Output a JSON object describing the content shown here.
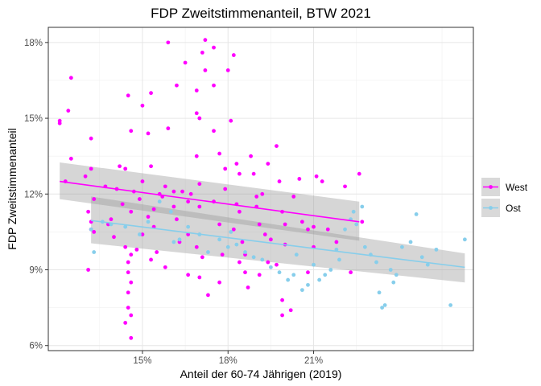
{
  "chart_data": {
    "type": "scatter",
    "title": "FDP Zweitstimmenanteil, BTW 2021",
    "xlabel": "Anteil der 60-74 Jährigen (2019)",
    "ylabel": "FDP Zweitstimmenanteil",
    "xlim": [
      11.7,
      26.6
    ],
    "ylim": [
      5.8,
      18.6
    ],
    "x_ticks": [
      15,
      18,
      21
    ],
    "x_tick_labels": [
      "15%",
      "18%",
      "21%"
    ],
    "y_ticks": [
      6,
      9,
      12,
      15,
      18
    ],
    "y_tick_labels": [
      "6%",
      "9%",
      "12%",
      "15%",
      "18%"
    ],
    "grid": true,
    "legend_position": "right",
    "series": [
      {
        "name": "West",
        "color": "#ff00ff",
        "trend": {
          "x": [
            12.1,
            22.6
          ],
          "y": [
            12.5,
            10.9
          ]
        },
        "band_upper": [
          13.25,
          11.7
        ],
        "band_lower": [
          11.8,
          10.15
        ],
        "points": [
          [
            12.1,
            14.9
          ],
          [
            12.1,
            14.8
          ],
          [
            12.4,
            15.3
          ],
          [
            12.5,
            16.6
          ],
          [
            12.5,
            13.4
          ],
          [
            12.3,
            12.5
          ],
          [
            13.2,
            13.0
          ],
          [
            13.2,
            14.2
          ],
          [
            13.0,
            12.7
          ],
          [
            13.3,
            11.8
          ],
          [
            13.1,
            11.3
          ],
          [
            13.2,
            10.9
          ],
          [
            13.2,
            10.6
          ],
          [
            13.1,
            9.0
          ],
          [
            13.3,
            10.5
          ],
          [
            13.7,
            12.3
          ],
          [
            13.9,
            11.0
          ],
          [
            13.8,
            10.8
          ],
          [
            14.0,
            10.3
          ],
          [
            14.2,
            13.1
          ],
          [
            14.3,
            11.6
          ],
          [
            14.1,
            12.2
          ],
          [
            14.5,
            15.9
          ],
          [
            14.6,
            14.5
          ],
          [
            14.4,
            13.0
          ],
          [
            14.6,
            11.3
          ],
          [
            14.7,
            12.1
          ],
          [
            14.4,
            9.9
          ],
          [
            14.6,
            9.6
          ],
          [
            14.5,
            8.9
          ],
          [
            14.6,
            8.5
          ],
          [
            14.5,
            8.1
          ],
          [
            14.5,
            7.5
          ],
          [
            14.6,
            7.2
          ],
          [
            14.4,
            6.9
          ],
          [
            14.6,
            6.3
          ],
          [
            14.5,
            9.3
          ],
          [
            14.9,
            11.8
          ],
          [
            15.0,
            12.5
          ],
          [
            15.2,
            14.4
          ],
          [
            15.0,
            15.5
          ],
          [
            15.3,
            16.0
          ],
          [
            15.3,
            13.1
          ],
          [
            15.4,
            11.4
          ],
          [
            15.2,
            11.1
          ],
          [
            15.4,
            10.7
          ],
          [
            15.0,
            10.4
          ],
          [
            15.5,
            9.7
          ],
          [
            15.3,
            9.4
          ],
          [
            15.6,
            12.0
          ],
          [
            15.7,
            11.9
          ],
          [
            15.8,
            12.3
          ],
          [
            15.9,
            14.6
          ],
          [
            15.9,
            18.0
          ],
          [
            16.1,
            12.1
          ],
          [
            16.1,
            11.5
          ],
          [
            16.2,
            11.0
          ],
          [
            16.4,
            12.1
          ],
          [
            16.3,
            10.1
          ],
          [
            16.6,
            10.4
          ],
          [
            16.6,
            11.7
          ],
          [
            16.7,
            12.0
          ],
          [
            16.9,
            13.5
          ],
          [
            16.9,
            16.1
          ],
          [
            16.2,
            16.3
          ],
          [
            16.5,
            17.2
          ],
          [
            16.9,
            15.2
          ],
          [
            17.0,
            15.0
          ],
          [
            17.1,
            17.6
          ],
          [
            17.2,
            16.9
          ],
          [
            17.2,
            18.1
          ],
          [
            17.0,
            12.4
          ],
          [
            17.0,
            11.5
          ],
          [
            16.9,
            9.9
          ],
          [
            17.1,
            9.5
          ],
          [
            17.0,
            8.7
          ],
          [
            17.3,
            8.0
          ],
          [
            17.5,
            17.8
          ],
          [
            17.5,
            16.3
          ],
          [
            17.5,
            14.5
          ],
          [
            17.7,
            13.6
          ],
          [
            17.5,
            11.7
          ],
          [
            17.7,
            10.8
          ],
          [
            17.8,
            9.6
          ],
          [
            17.7,
            8.5
          ],
          [
            17.9,
            12.2
          ],
          [
            17.9,
            13.0
          ],
          [
            18.1,
            14.9
          ],
          [
            18.0,
            16.9
          ],
          [
            18.2,
            17.5
          ],
          [
            18.3,
            13.2
          ],
          [
            18.4,
            12.8
          ],
          [
            18.3,
            11.6
          ],
          [
            18.4,
            11.3
          ],
          [
            18.2,
            10.6
          ],
          [
            18.5,
            10.1
          ],
          [
            18.6,
            9.6
          ],
          [
            18.4,
            9.3
          ],
          [
            18.6,
            8.9
          ],
          [
            18.7,
            8.3
          ],
          [
            18.8,
            13.5
          ],
          [
            18.9,
            12.8
          ],
          [
            19.0,
            11.9
          ],
          [
            19.0,
            11.5
          ],
          [
            19.1,
            10.8
          ],
          [
            19.3,
            10.4
          ],
          [
            19.5,
            10.2
          ],
          [
            19.4,
            9.3
          ],
          [
            19.1,
            8.8
          ],
          [
            19.4,
            13.2
          ],
          [
            19.7,
            13.9
          ],
          [
            19.8,
            12.5
          ],
          [
            19.9,
            11.3
          ],
          [
            20.0,
            10.8
          ],
          [
            20.0,
            10.0
          ],
          [
            19.7,
            9.2
          ],
          [
            19.9,
            7.8
          ],
          [
            20.2,
            7.4
          ],
          [
            19.9,
            7.2
          ],
          [
            20.3,
            11.9
          ],
          [
            20.5,
            12.6
          ],
          [
            20.6,
            10.9
          ],
          [
            20.8,
            10.6
          ],
          [
            21.0,
            9.9
          ],
          [
            20.8,
            8.9
          ],
          [
            21.0,
            10.7
          ],
          [
            21.1,
            12.7
          ],
          [
            21.3,
            12.5
          ],
          [
            21.8,
            10.1
          ],
          [
            22.1,
            12.3
          ],
          [
            22.6,
            12.8
          ],
          [
            22.7,
            10.9
          ],
          [
            21.5,
            10.6
          ],
          [
            22.3,
            8.9
          ],
          [
            14.8,
            9.8
          ],
          [
            15.8,
            9.1
          ],
          [
            16.6,
            8.8
          ],
          [
            19.2,
            12.0
          ]
        ]
      },
      {
        "name": "Ost",
        "color": "#87ceeb",
        "trend": {
          "x": [
            13.2,
            26.3
          ],
          "y": [
            10.95,
            9.1
          ]
        },
        "band_upper": [
          11.9,
          9.65
        ],
        "band_lower": [
          10.05,
          8.5
        ],
        "points": [
          [
            13.2,
            10.6
          ],
          [
            13.3,
            9.7
          ],
          [
            13.6,
            10.9
          ],
          [
            13.9,
            10.8
          ],
          [
            14.4,
            10.7
          ],
          [
            14.9,
            10.4
          ],
          [
            15.2,
            10.9
          ],
          [
            15.6,
            11.7
          ],
          [
            16.0,
            11.3
          ],
          [
            16.3,
            10.2
          ],
          [
            16.6,
            10.7
          ],
          [
            17.0,
            10.4
          ],
          [
            17.3,
            9.7
          ],
          [
            17.7,
            10.2
          ],
          [
            18.0,
            9.9
          ],
          [
            18.3,
            10.0
          ],
          [
            18.6,
            9.7
          ],
          [
            18.9,
            9.5
          ],
          [
            19.2,
            9.4
          ],
          [
            19.5,
            9.1
          ],
          [
            19.8,
            8.9
          ],
          [
            20.1,
            8.6
          ],
          [
            20.3,
            8.8
          ],
          [
            20.6,
            8.2
          ],
          [
            20.8,
            8.4
          ],
          [
            21.0,
            9.2
          ],
          [
            21.2,
            8.6
          ],
          [
            21.4,
            8.8
          ],
          [
            21.6,
            9.0
          ],
          [
            21.9,
            9.4
          ],
          [
            22.1,
            10.6
          ],
          [
            22.3,
            11.0
          ],
          [
            22.5,
            10.8
          ],
          [
            22.7,
            11.5
          ],
          [
            22.4,
            11.3
          ],
          [
            23.0,
            9.6
          ],
          [
            23.2,
            9.3
          ],
          [
            23.3,
            8.1
          ],
          [
            23.4,
            7.5
          ],
          [
            23.5,
            7.6
          ],
          [
            23.7,
            9.0
          ],
          [
            23.9,
            8.8
          ],
          [
            24.1,
            9.9
          ],
          [
            24.4,
            10.1
          ],
          [
            24.6,
            11.2
          ],
          [
            24.8,
            9.5
          ],
          [
            25.0,
            9.2
          ],
          [
            25.3,
            9.8
          ],
          [
            25.8,
            7.6
          ],
          [
            26.3,
            10.2
          ],
          [
            23.8,
            8.5
          ],
          [
            22.8,
            9.9
          ],
          [
            21.8,
            9.8
          ],
          [
            20.4,
            9.6
          ],
          [
            18.1,
            10.5
          ],
          [
            16.1,
            10.1
          ]
        ]
      }
    ]
  }
}
